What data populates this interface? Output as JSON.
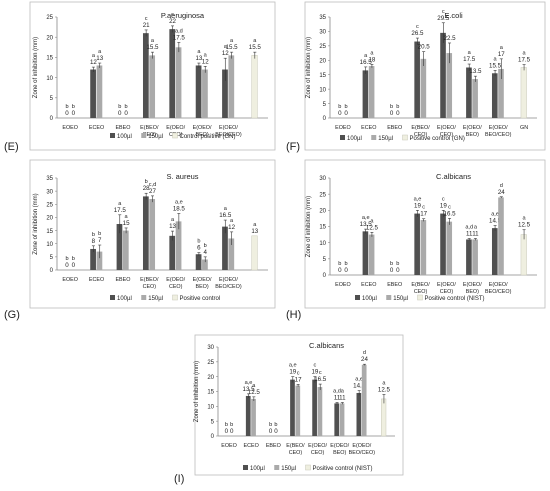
{
  "colors": {
    "s1": "#505050",
    "s2": "#aaaaaa",
    "s3": "#efefe0",
    "axis": "#888888",
    "box": "#bdbdbd"
  },
  "chart_data": [
    {
      "type": "bar",
      "panel_label": "(E)",
      "title": "P.aeruginosa",
      "ylabel": "Zone of inhibition (mm)",
      "ylim": [
        0,
        25
      ],
      "yticks": [
        0,
        5,
        10,
        15,
        20,
        25
      ],
      "categories": [
        [
          "EOEO"
        ],
        [
          "ECEO"
        ],
        [
          "EBEO"
        ],
        [
          "E(BEO/",
          "CEO)"
        ],
        [
          "E(OEO/",
          "CEO)"
        ],
        [
          "E(OEO/",
          "BEO)"
        ],
        [
          "E(OEO/",
          "BEO/CEO)"
        ],
        [
          ""
        ]
      ],
      "legend": [
        "100µl",
        "150µl",
        "Control positive (GN)"
      ],
      "legend_inline": true,
      "series": [
        {
          "name": "100µl",
          "values": [
            0,
            12,
            0,
            21,
            22,
            13,
            12,
            null
          ],
          "errors": [
            0,
            0.6,
            0,
            0.8,
            0.8,
            0.6,
            2.8,
            null
          ],
          "labels": [
            "0",
            "12",
            "0",
            "21",
            "22",
            "13",
            "12",
            ""
          ],
          "letters": [
            "b",
            "a",
            "b",
            "c",
            "c",
            "a",
            "a",
            ""
          ]
        },
        {
          "name": "150µl",
          "values": [
            0,
            13,
            0,
            15.5,
            17.5,
            12,
            15.5,
            null
          ],
          "errors": [
            0,
            0.6,
            0,
            0.8,
            1.2,
            0.8,
            0.8,
            null
          ],
          "labels": [
            "0",
            "13",
            "0",
            "15.5",
            "17.5",
            "12",
            "15.5",
            ""
          ],
          "letters": [
            "b",
            "a",
            "b",
            "a",
            "a,d",
            "a",
            "a",
            ""
          ]
        },
        {
          "name": "Control positive (GN)",
          "values": [
            null,
            null,
            null,
            null,
            null,
            null,
            null,
            15.5
          ],
          "errors": [
            null,
            null,
            null,
            null,
            null,
            null,
            null,
            0.8
          ],
          "labels": [
            "",
            "",
            "",
            "",
            "",
            "",
            "",
            "15.5"
          ],
          "letters": [
            "",
            "",
            "",
            "",
            "",
            "",
            "",
            "a"
          ]
        }
      ]
    },
    {
      "type": "bar",
      "panel_label": "(F)",
      "title": "E.coli",
      "ylabel": "Zone of inhibition (mm)",
      "ylim": [
        0,
        35
      ],
      "yticks": [
        0,
        5,
        10,
        15,
        20,
        25,
        30,
        35
      ],
      "categories": [
        [
          "EOEO"
        ],
        [
          "ECEO"
        ],
        [
          "EBEO"
        ],
        [
          "E(BEO/",
          "CEO)"
        ],
        [
          "E(OEO/",
          "CEO)"
        ],
        [
          "E(OEO/",
          "BEO)"
        ],
        [
          "E(OEO/",
          "BEO/CEO)"
        ],
        [
          "GN"
        ]
      ],
      "legend": [
        "100µl",
        "150µl",
        "Positive control (GN)"
      ],
      "legend_inline": false,
      "series": [
        {
          "name": "100µl",
          "values": [
            0,
            16.5,
            0,
            26.5,
            29.5,
            17.5,
            15.5,
            null
          ],
          "errors": [
            0,
            1.2,
            0,
            1.2,
            3.5,
            1.2,
            1.0,
            null
          ],
          "labels": [
            "0",
            "16.5",
            "0",
            "26.5",
            "29.5",
            "17.5",
            "15.5",
            ""
          ],
          "letters": [
            "b",
            "a",
            "b",
            "c",
            "c",
            "a",
            "a",
            ""
          ]
        },
        {
          "name": "150µl",
          "values": [
            0,
            18,
            0,
            20.5,
            22.5,
            13.5,
            17,
            null
          ],
          "errors": [
            0,
            0.6,
            0,
            2.5,
            3.5,
            1.0,
            3.5,
            null
          ],
          "labels": [
            "0",
            "18",
            "0",
            "20.5",
            "22.5",
            "13.5",
            "17",
            ""
          ],
          "letters": [
            "b",
            "a",
            "b",
            "",
            "",
            "",
            "a",
            ""
          ]
        },
        {
          "name": "Positive control (GN)",
          "values": [
            null,
            null,
            null,
            null,
            null,
            null,
            null,
            17.5
          ],
          "errors": [
            null,
            null,
            null,
            null,
            null,
            null,
            null,
            1.0
          ],
          "labels": [
            "",
            "",
            "",
            "",
            "",
            "",
            "",
            "17.5"
          ],
          "letters": [
            "",
            "",
            "",
            "",
            "",
            "",
            "",
            "a"
          ]
        }
      ]
    },
    {
      "type": "bar",
      "panel_label": "(G)",
      "title": "S. aureus",
      "ylabel": "Zone of inhibition (mm)",
      "ylim": [
        0,
        35
      ],
      "yticks": [
        0,
        5,
        10,
        15,
        20,
        25,
        30,
        35
      ],
      "categories": [
        [
          "EOEO"
        ],
        [
          "ECEO"
        ],
        [
          "EBEO"
        ],
        [
          "E(BEO/",
          "CEO)"
        ],
        [
          "E(OEO/",
          "CEO)"
        ],
        [
          "E(OEO/",
          "BEO)"
        ],
        [
          "E(OEO/",
          "BEO/CEO)"
        ],
        [
          ""
        ]
      ],
      "legend": [
        "100µl",
        "150µl",
        "Positive control"
      ],
      "legend_inline": true,
      "series": [
        {
          "name": "100µl",
          "values": [
            0,
            8,
            17.5,
            28,
            13,
            6,
            16.5,
            null
          ],
          "errors": [
            0,
            1.2,
            3.5,
            1.2,
            1.8,
            0.6,
            2.5,
            null
          ],
          "labels": [
            "0",
            "8",
            "17.5",
            "28",
            "13",
            "6",
            "16.5",
            ""
          ],
          "letters": [
            "b",
            "b",
            "a",
            "b",
            "a",
            "b",
            "a",
            ""
          ]
        },
        {
          "name": "150µl",
          "values": [
            0,
            7,
            15,
            27,
            18.5,
            4,
            12,
            null
          ],
          "errors": [
            0,
            2.5,
            1.0,
            1.2,
            3.0,
            1.0,
            2.5,
            null
          ],
          "labels": [
            "0",
            "7",
            "15",
            "27",
            "18.5",
            "4",
            "12",
            ""
          ],
          "letters": [
            "b",
            "b",
            "a",
            "c,d",
            "a,e",
            "b",
            "a",
            ""
          ]
        },
        {
          "name": "Positive control",
          "values": [
            null,
            null,
            null,
            null,
            null,
            null,
            null,
            13
          ],
          "errors": [
            null,
            null,
            null,
            null,
            null,
            null,
            null,
            0
          ],
          "labels": [
            "",
            "",
            "",
            "",
            "",
            "",
            "",
            "13"
          ],
          "letters": [
            "",
            "",
            "",
            "",
            "",
            "",
            "",
            "a"
          ]
        }
      ]
    },
    {
      "type": "bar",
      "panel_label": "(H)",
      "title": "C.albicans",
      "ylabel": "Zone of inhibition (mm)",
      "ylim": [
        0,
        30
      ],
      "yticks": [
        0,
        5,
        10,
        15,
        20,
        25,
        30
      ],
      "categories": [
        [
          "EOEO"
        ],
        [
          "ECEO"
        ],
        [
          "EBEO"
        ],
        [
          "E(BEO/",
          "CEO)"
        ],
        [
          "E(OEO/",
          "CEO)"
        ],
        [
          "E(OEO/",
          "BEO)"
        ],
        [
          "E(OEO/",
          "BEO/CEO)"
        ],
        [
          ""
        ]
      ],
      "legend": [
        "100µl",
        "150µl",
        "Positive control (NIST)"
      ],
      "legend_inline": true,
      "series": [
        {
          "name": "100µl",
          "values": [
            0,
            13.5,
            0,
            19,
            19,
            11,
            14.5,
            null
          ],
          "errors": [
            0,
            0.7,
            0,
            1.0,
            1.0,
            0.3,
            0.8,
            null
          ],
          "labels": [
            "0",
            "13.5",
            "0",
            "19",
            "19",
            "11",
            "14.5",
            ""
          ],
          "letters": [
            "b",
            "a,e",
            "b",
            "a,e",
            "c",
            "a,d",
            "a,e",
            ""
          ]
        },
        {
          "name": "150µl",
          "values": [
            0,
            12.5,
            0,
            17,
            16.5,
            11,
            24,
            null
          ],
          "errors": [
            0,
            0.7,
            0,
            0.4,
            1.0,
            0.3,
            0.2,
            null
          ],
          "labels": [
            "0",
            "12.5",
            "0",
            "17",
            "16.5",
            "11",
            "24",
            ""
          ],
          "letters": [
            "b",
            "a",
            "b",
            "c",
            "c",
            "a",
            "d",
            ""
          ]
        },
        {
          "name": "Positive control (NIST)",
          "values": [
            null,
            null,
            null,
            null,
            null,
            null,
            null,
            12.5
          ],
          "errors": [
            null,
            null,
            null,
            null,
            null,
            null,
            null,
            1.5
          ],
          "labels": [
            "",
            "",
            "",
            "",
            "",
            "",
            "",
            "12.5"
          ],
          "letters": [
            "",
            "",
            "",
            "",
            "",
            "",
            "",
            "a"
          ]
        }
      ]
    },
    {
      "type": "bar",
      "panel_label": "(I)",
      "title": "C.albicans",
      "ylabel": "Zone of inhibition (mm)",
      "ylim": [
        0,
        30
      ],
      "yticks": [
        0,
        5,
        10,
        15,
        20,
        25,
        30
      ],
      "categories": [
        [
          "EOEO"
        ],
        [
          "ECEO"
        ],
        [
          "EBEO"
        ],
        [
          "E(BEO/",
          "CEO)"
        ],
        [
          "E(OEO/",
          "CEO)"
        ],
        [
          "E(OEO/",
          "BEO)"
        ],
        [
          "E(OEO/",
          "BEO/CEO)"
        ],
        [
          ""
        ]
      ],
      "legend": [
        "100µl",
        "150µl",
        "Positive control (NIST)"
      ],
      "legend_inline": true,
      "series": [
        {
          "name": "100µl",
          "values": [
            0,
            13.5,
            0,
            19,
            19,
            11,
            14.5,
            null
          ],
          "errors": [
            0,
            0.7,
            0,
            1.0,
            1.0,
            0.3,
            0.8,
            null
          ],
          "labels": [
            "0",
            "13.5",
            "0",
            "19",
            "19",
            "11",
            "14.5",
            ""
          ],
          "letters": [
            "b",
            "a,e",
            "b",
            "a,e",
            "c",
            "a,d",
            "a,e",
            ""
          ]
        },
        {
          "name": "150µl",
          "values": [
            0,
            12.5,
            0,
            17,
            16.5,
            11,
            24,
            null
          ],
          "errors": [
            0,
            0.7,
            0,
            0.4,
            1.0,
            0.3,
            0.2,
            null
          ],
          "labels": [
            "0",
            "12.5",
            "0",
            "17",
            "16.5",
            "11",
            "24",
            ""
          ],
          "letters": [
            "b",
            "a",
            "b",
            "c",
            "c",
            "a",
            "d",
            ""
          ]
        },
        {
          "name": "Positive control (NIST)",
          "values": [
            null,
            null,
            null,
            null,
            null,
            null,
            null,
            12.5
          ],
          "errors": [
            null,
            null,
            null,
            null,
            null,
            null,
            null,
            1.5
          ],
          "labels": [
            "",
            "",
            "",
            "",
            "",
            "",
            "",
            "12.5"
          ],
          "letters": [
            "",
            "",
            "",
            "",
            "",
            "",
            "",
            "a"
          ]
        }
      ]
    }
  ]
}
